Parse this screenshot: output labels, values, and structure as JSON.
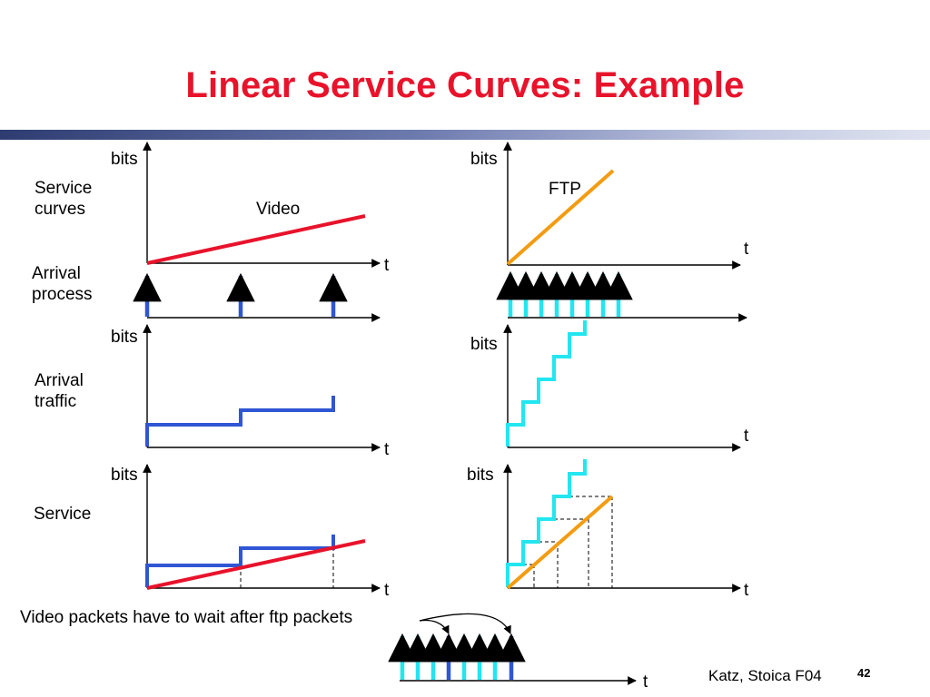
{
  "slide": {
    "title": "Linear Service Curves: Example",
    "footer_author": "Katz, Stoica F04",
    "page_number": "42"
  },
  "row_labels": {
    "service_curves": "Service\ncurves",
    "arrival_process": "Arrival\nprocess",
    "arrival_traffic": "Arrival\ntraffic",
    "service": "Service"
  },
  "axis_labels": {
    "bits": "bits",
    "t": "t"
  },
  "curve_labels": {
    "video": "Video",
    "ftp": "FTP"
  },
  "caption": "Video packets have to wait after ftp packets",
  "colors": {
    "title": "#e8132b",
    "video_curve": "#e8132b",
    "ftp_curve": "#f39c12",
    "video_packets": "#2f56d4",
    "ftp_packets": "#22e6f0",
    "axes": "#000000"
  }
}
